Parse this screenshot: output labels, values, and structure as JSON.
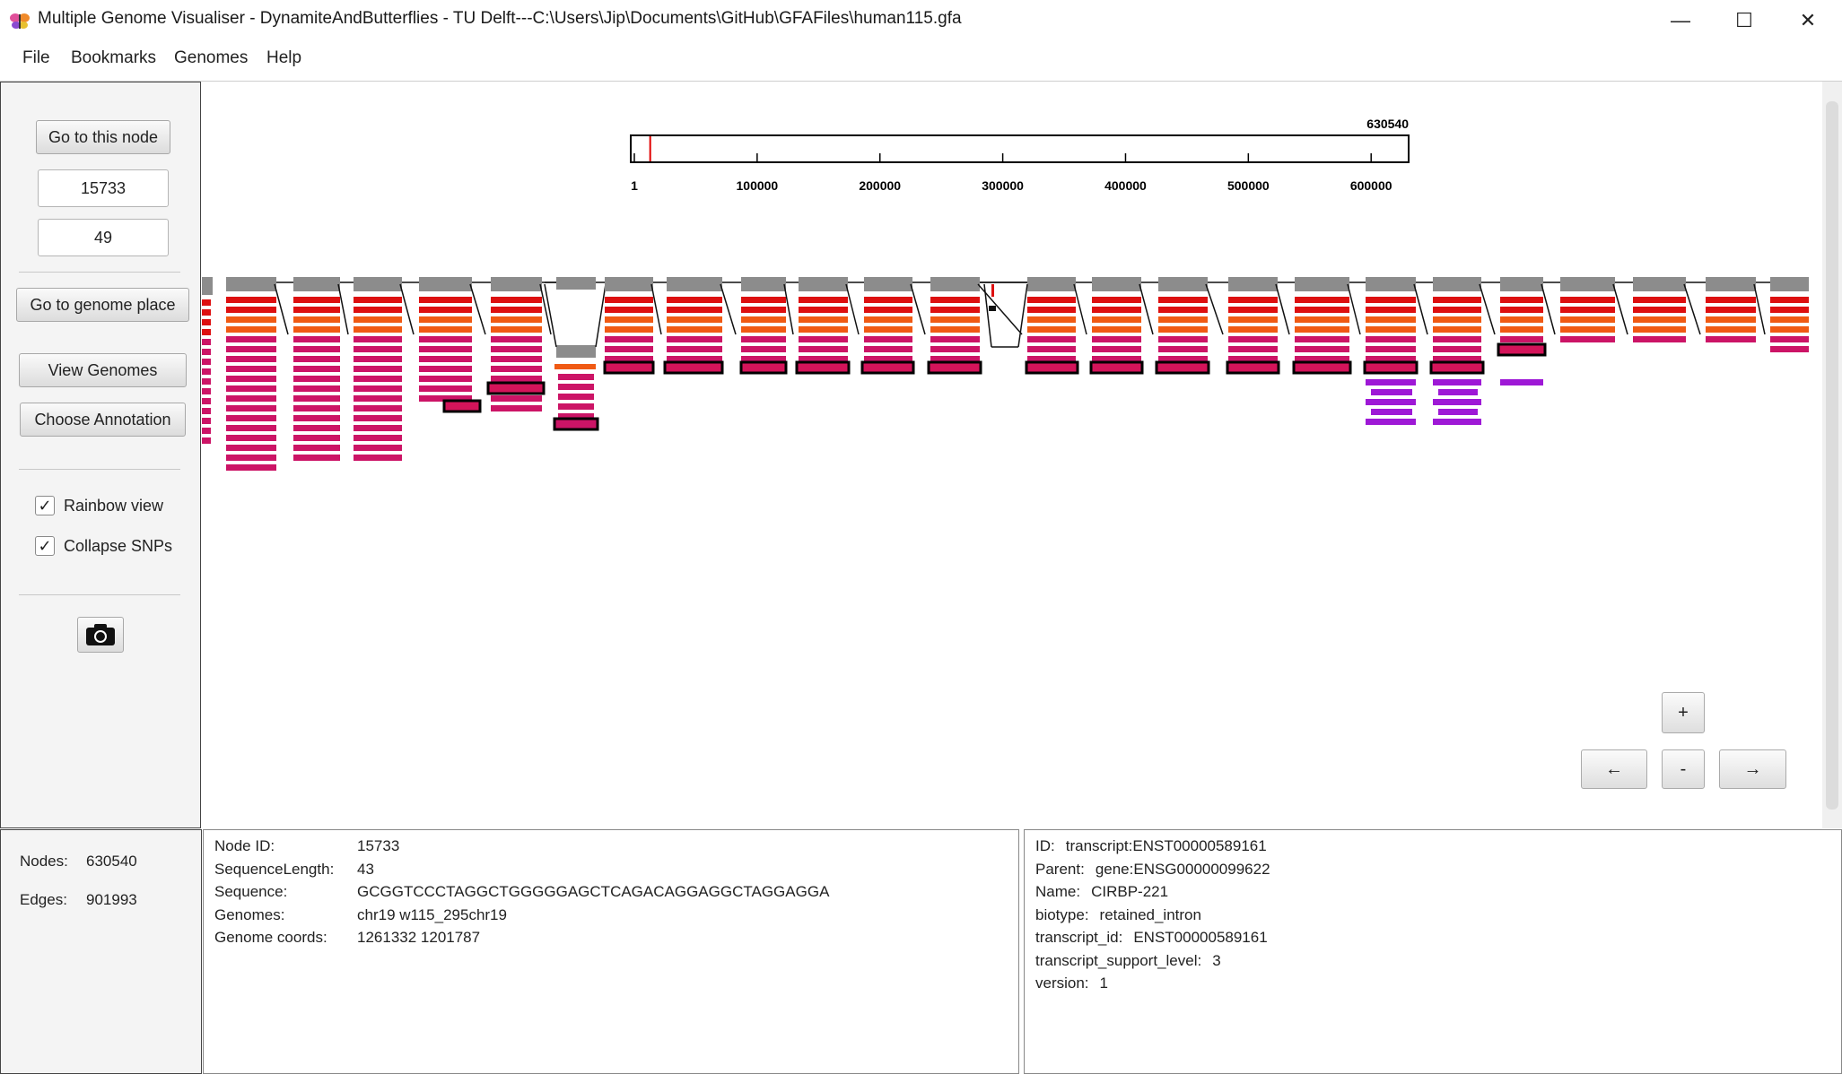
{
  "window": {
    "title": "Multiple Genome Visualiser - DynamiteAndButterflies  - TU Delft---C:\\Users\\Jip\\Documents\\GitHub\\GFAFiles\\human115.gfa",
    "icon": "butterfly-icon",
    "minimize_glyph": "—",
    "maximize_glyph": "☐",
    "close_glyph": "✕"
  },
  "menu": [
    "File",
    "Bookmarks",
    "Genomes",
    "Help"
  ],
  "sidebar": {
    "goto_node_label": "Go to this node",
    "node_value": "15733",
    "radius_value": "49",
    "goto_genome_label": "Go to genome place",
    "view_genomes_label": "View Genomes",
    "choose_annotation_label": "Choose Annotation",
    "rainbow_label": "Rainbow view",
    "rainbow_checked": true,
    "collapse_label": "Collapse SNPs",
    "collapse_checked": true,
    "check_glyph": "✓",
    "screenshot_icon": "camera-icon"
  },
  "ruler": {
    "max_label": "630540",
    "ticks": [
      "1",
      "100000",
      "200000",
      "300000",
      "400000",
      "500000",
      "600000"
    ],
    "position_fraction": 0.025
  },
  "nav": {
    "zoom_in": "+",
    "zoom_out": "-",
    "left": "←",
    "right": "→"
  },
  "stats": {
    "nodes_label": "Nodes:",
    "nodes_value": "630540",
    "edges_label": "Edges:",
    "edges_value": "901993"
  },
  "node_info": [
    {
      "key": "Node ID:",
      "value": "15733"
    },
    {
      "key": "SequenceLength:",
      "value": "43"
    },
    {
      "key": "Sequence:",
      "value": "GCGGTCCCTAGGCTGGGGGAGCTCAGACAGGAGGCTAGGAGGA"
    },
    {
      "key": "Genomes:",
      "value": "chr19 w115_295chr19"
    },
    {
      "key": "Genome coords:",
      "value": "1261332 1201787"
    }
  ],
  "annotation_info": [
    {
      "key": "ID:",
      "value": "transcript:ENST00000589161"
    },
    {
      "key": "Parent:",
      "value": "gene:ENSG00000099622"
    },
    {
      "key": "Name:",
      "value": "CIRBP-221"
    },
    {
      "key": "biotype:",
      "value": "retained_intron"
    },
    {
      "key": "transcript_id:",
      "value": "ENST00000589161"
    },
    {
      "key": "transcript_support_level:",
      "value": "3"
    },
    {
      "key": "version:",
      "value": "1"
    }
  ],
  "colors": {
    "node_grey": "#8c8c8c",
    "band_red": "#dd1010",
    "band_orange": "#f05a14",
    "band_magenta": "#d4145a",
    "band_pink": "#cc1466",
    "band_purple": "#9e18d6"
  }
}
